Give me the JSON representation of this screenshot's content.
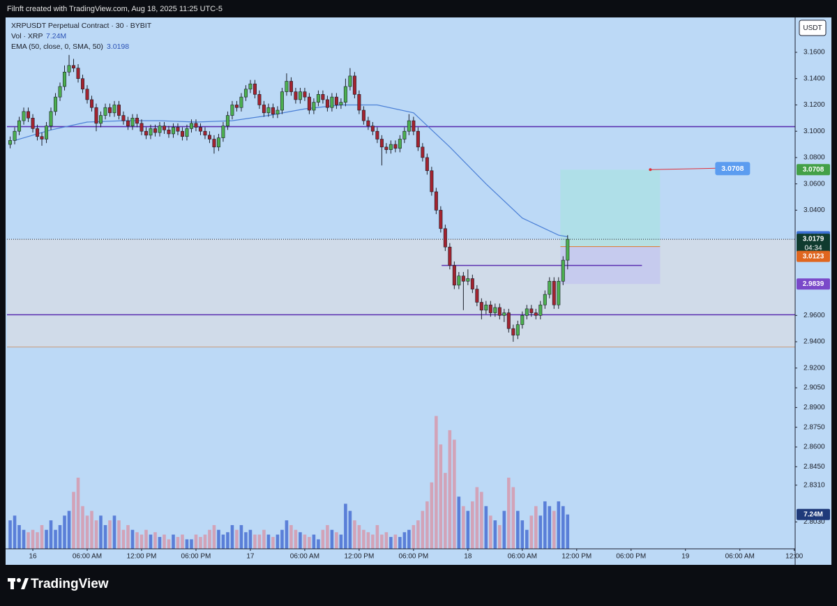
{
  "header": {
    "caption": "Filnft created with TradingView.com, Aug 18, 2025 11:25 UTC-5"
  },
  "chart_data": {
    "type": "candlestick",
    "legend": {
      "symbol": "XRPUSDT Perpetual Contract · 30 · BYBIT",
      "volume": "Vol · XRP",
      "ema": "EMA (50, close, 0, SMA, 50)"
    },
    "currency": "USDT",
    "colors": {
      "up": "#4caf50",
      "down": "#a3232f",
      "volume_up": "#5a7fd8",
      "volume_down": "#d2a3b8",
      "ema": "#4a7fd6",
      "level": "#5a2fb0",
      "background": "#bcd9f6"
    },
    "x": [
      -2.5,
      -2,
      -1.5,
      -1,
      -0.5,
      0,
      0.5,
      1,
      1.5,
      2,
      2.5,
      3,
      3.5,
      4,
      4.5,
      5,
      5.5,
      6,
      6.5,
      7,
      7.5,
      8,
      8.5,
      9,
      9.5,
      10,
      10.5,
      11,
      11.5,
      12,
      12.5,
      13,
      13.5,
      14,
      14.5,
      15,
      15.5,
      16,
      16.5,
      17,
      17.5,
      18,
      18.5,
      19,
      19.5,
      20,
      20.5,
      21,
      21.5,
      22,
      22.5,
      23,
      23.5,
      24,
      24.5,
      25,
      25.5,
      26,
      26.5,
      27,
      27.5,
      28,
      28.5,
      29,
      29.5,
      30,
      30.5,
      31,
      31.5,
      32,
      32.5,
      33,
      33.5,
      34,
      34.5,
      35,
      35.5,
      36,
      36.5,
      37,
      37.5,
      38,
      38.5,
      39,
      39.5,
      40,
      40.5,
      41,
      41.5,
      42,
      42.5,
      43,
      43.5,
      44,
      44.5,
      45,
      45.5,
      46,
      46.5,
      47,
      47.5,
      48,
      48.5,
      49,
      49.5,
      50,
      50.5,
      51,
      51.5,
      52,
      52.5,
      53,
      53.5,
      54,
      54.5,
      55,
      55.5,
      56,
      56.5,
      57,
      57.5,
      58,
      58.5,
      59
    ],
    "open": [
      3.09,
      3.093,
      3.1,
      3.108,
      3.115,
      3.11,
      3.102,
      3.096,
      3.094,
      3.104,
      3.115,
      3.126,
      3.134,
      3.145,
      3.15,
      3.148,
      3.14,
      3.132,
      3.124,
      3.118,
      3.106,
      3.112,
      3.118,
      3.114,
      3.12,
      3.112,
      3.108,
      3.104,
      3.11,
      3.106,
      3.1,
      3.097,
      3.102,
      3.099,
      3.104,
      3.101,
      3.098,
      3.103,
      3.1,
      3.096,
      3.102,
      3.106,
      3.103,
      3.1,
      3.097,
      3.094,
      3.088,
      3.095,
      3.104,
      3.112,
      3.12,
      3.118,
      3.126,
      3.132,
      3.136,
      3.128,
      3.12,
      3.114,
      3.118,
      3.113,
      3.116,
      3.13,
      3.138,
      3.13,
      3.124,
      3.13,
      3.126,
      3.116,
      3.122,
      3.128,
      3.124,
      3.118,
      3.126,
      3.12,
      3.122,
      3.134,
      3.142,
      3.128,
      3.116,
      3.108,
      3.104,
      3.1,
      3.094,
      3.088,
      3.086,
      3.09,
      3.087,
      3.094,
      3.1,
      3.108,
      3.1,
      3.088,
      3.08,
      3.07,
      3.054,
      3.04,
      3.026,
      3.012,
      2.998,
      2.983,
      2.99,
      2.986,
      2.988,
      2.98,
      2.97,
      2.964,
      2.968,
      2.962,
      2.966,
      2.96,
      2.962,
      2.95,
      2.945,
      2.953,
      2.96,
      2.965,
      2.962,
      2.96,
      2.968,
      2.976,
      2.986,
      2.968,
      2.986,
      3.002
    ],
    "high": [
      3.096,
      3.103,
      3.111,
      3.118,
      3.118,
      3.113,
      3.105,
      3.099,
      3.107,
      3.118,
      3.129,
      3.137,
      3.15,
      3.158,
      3.155,
      3.151,
      3.143,
      3.135,
      3.127,
      3.121,
      3.115,
      3.121,
      3.121,
      3.123,
      3.123,
      3.115,
      3.111,
      3.113,
      3.113,
      3.109,
      3.103,
      3.105,
      3.105,
      3.107,
      3.107,
      3.104,
      3.106,
      3.106,
      3.103,
      3.105,
      3.109,
      3.109,
      3.106,
      3.103,
      3.1,
      3.097,
      3.098,
      3.107,
      3.115,
      3.123,
      3.123,
      3.129,
      3.135,
      3.139,
      3.139,
      3.131,
      3.123,
      3.121,
      3.121,
      3.119,
      3.133,
      3.144,
      3.141,
      3.133,
      3.133,
      3.133,
      3.129,
      3.125,
      3.131,
      3.131,
      3.127,
      3.129,
      3.129,
      3.125,
      3.14,
      3.148,
      3.145,
      3.131,
      3.119,
      3.111,
      3.107,
      3.103,
      3.097,
      3.091,
      3.093,
      3.093,
      3.097,
      3.103,
      3.113,
      3.111,
      3.103,
      3.091,
      3.083,
      3.073,
      3.057,
      3.043,
      3.029,
      3.015,
      3.001,
      2.993,
      2.993,
      2.995,
      2.991,
      2.983,
      2.973,
      2.971,
      2.971,
      2.969,
      2.969,
      2.965,
      2.965,
      2.953,
      2.956,
      2.963,
      2.968,
      2.968,
      2.965,
      2.971,
      2.979,
      2.989,
      2.989,
      2.989,
      3.005,
      3.021
    ],
    "low": [
      3.087,
      3.09,
      3.097,
      3.105,
      3.107,
      3.099,
      3.093,
      3.089,
      3.091,
      3.101,
      3.112,
      3.123,
      3.131,
      3.142,
      3.145,
      3.137,
      3.129,
      3.121,
      3.115,
      3.1,
      3.103,
      3.109,
      3.111,
      3.111,
      3.109,
      3.105,
      3.101,
      3.101,
      3.103,
      3.097,
      3.094,
      3.094,
      3.096,
      3.096,
      3.098,
      3.095,
      3.095,
      3.097,
      3.093,
      3.093,
      3.099,
      3.1,
      3.097,
      3.094,
      3.091,
      3.083,
      3.085,
      3.092,
      3.101,
      3.109,
      3.115,
      3.115,
      3.123,
      3.129,
      3.125,
      3.117,
      3.111,
      3.111,
      3.11,
      3.11,
      3.113,
      3.127,
      3.127,
      3.121,
      3.121,
      3.123,
      3.113,
      3.113,
      3.119,
      3.121,
      3.115,
      3.115,
      3.117,
      3.117,
      3.119,
      3.131,
      3.125,
      3.113,
      3.105,
      3.101,
      3.097,
      3.091,
      3.074,
      3.083,
      3.083,
      3.084,
      3.084,
      3.091,
      3.097,
      3.097,
      3.085,
      3.077,
      3.067,
      3.051,
      3.037,
      3.023,
      3.009,
      2.995,
      2.98,
      2.98,
      2.964,
      2.983,
      2.977,
      2.967,
      2.957,
      2.961,
      2.959,
      2.959,
      2.957,
      2.955,
      2.947,
      2.94,
      2.942,
      2.95,
      2.957,
      2.959,
      2.957,
      2.957,
      2.965,
      2.973,
      2.965,
      2.965,
      2.983,
      2.995
    ],
    "close": [
      3.093,
      3.1,
      3.108,
      3.115,
      3.11,
      3.102,
      3.096,
      3.094,
      3.104,
      3.115,
      3.126,
      3.134,
      3.145,
      3.15,
      3.148,
      3.14,
      3.132,
      3.124,
      3.118,
      3.106,
      3.112,
      3.118,
      3.114,
      3.12,
      3.112,
      3.108,
      3.104,
      3.11,
      3.106,
      3.1,
      3.097,
      3.102,
      3.099,
      3.104,
      3.101,
      3.098,
      3.103,
      3.1,
      3.096,
      3.102,
      3.106,
      3.103,
      3.1,
      3.097,
      3.094,
      3.088,
      3.095,
      3.104,
      3.112,
      3.12,
      3.118,
      3.126,
      3.132,
      3.136,
      3.128,
      3.12,
      3.114,
      3.118,
      3.113,
      3.116,
      3.13,
      3.138,
      3.13,
      3.124,
      3.13,
      3.126,
      3.116,
      3.122,
      3.128,
      3.124,
      3.118,
      3.126,
      3.12,
      3.122,
      3.134,
      3.142,
      3.128,
      3.116,
      3.108,
      3.104,
      3.1,
      3.094,
      3.088,
      3.086,
      3.09,
      3.087,
      3.094,
      3.1,
      3.108,
      3.1,
      3.088,
      3.08,
      3.07,
      3.054,
      3.04,
      3.026,
      3.012,
      2.998,
      2.983,
      2.99,
      2.986,
      2.988,
      2.98,
      2.97,
      2.964,
      2.968,
      2.962,
      2.966,
      2.96,
      2.962,
      2.95,
      2.945,
      2.953,
      2.96,
      2.965,
      2.962,
      2.96,
      2.968,
      2.976,
      2.986,
      2.968,
      2.986,
      3.002,
      3.0179
    ],
    "volume": [
      6,
      7,
      5,
      4,
      3.5,
      4,
      3.5,
      5,
      4,
      6,
      4,
      5,
      7,
      8,
      12,
      15,
      9,
      7,
      8,
      6,
      7,
      5,
      6,
      7,
      6,
      4,
      5,
      4,
      3.5,
      3,
      4,
      3,
      3.5,
      2.5,
      3,
      2,
      3,
      2.5,
      3,
      2,
      2,
      3,
      2.5,
      3,
      4,
      5,
      4,
      3,
      3.5,
      5,
      4,
      5,
      3.5,
      4,
      3,
      3,
      4,
      3,
      2.5,
      3,
      4,
      6,
      5,
      4,
      3.5,
      3,
      2.5,
      3,
      2,
      4,
      5,
      4,
      3.5,
      3,
      9.5,
      8,
      6,
      5,
      4,
      3.5,
      3,
      5,
      3,
      3.5,
      2.5,
      3,
      2.5,
      3.5,
      4,
      5,
      6,
      8,
      10,
      14,
      28,
      22,
      16,
      25,
      23,
      11,
      9,
      8,
      10,
      13,
      12,
      9,
      7,
      6,
      5,
      8,
      15,
      13,
      8,
      6,
      4,
      7,
      9,
      7,
      10,
      9,
      8,
      10,
      9,
      7.24
    ],
    "volume_label": "7.24M",
    "ema": {
      "x": [
        -2,
        2,
        6,
        10,
        14,
        18,
        22,
        26,
        30,
        34,
        38,
        42,
        46,
        50,
        54,
        58,
        59
      ],
      "values": [
        3.093,
        3.101,
        3.107,
        3.108,
        3.108,
        3.107,
        3.108,
        3.112,
        3.117,
        3.12,
        3.12,
        3.114,
        3.088,
        3.06,
        3.034,
        3.021,
        3.0198
      ]
    },
    "levels": [
      3.1035,
      2.9605
    ],
    "zone": [
      2.936,
      3.018
    ],
    "short_level": {
      "value": 2.998,
      "x": [
        45.1,
        67.2
      ]
    },
    "position": {
      "entry": 3.0123,
      "target": 3.0708,
      "stop": 2.9839,
      "x": [
        58.2,
        69.2
      ]
    },
    "countdown": "04:34",
    "xlim": [
      -2.85,
      84.1
    ],
    "ylim": [
      2.7826,
      3.1865
    ],
    "y2lim": [
      0,
      112
    ],
    "xticks": [
      {
        "value": 0,
        "label": "16"
      },
      {
        "value": 6,
        "label": "06:00 AM"
      },
      {
        "value": 12,
        "label": "12:00 PM"
      },
      {
        "value": 18,
        "label": "06:00 PM"
      },
      {
        "value": 24,
        "label": "17"
      },
      {
        "value": 30,
        "label": "06:00 AM"
      },
      {
        "value": 36,
        "label": "12:00 PM"
      },
      {
        "value": 42,
        "label": "06:00 PM"
      },
      {
        "value": 48,
        "label": "18"
      },
      {
        "value": 54,
        "label": "06:00 AM"
      },
      {
        "value": 60,
        "label": "12:00 PM"
      },
      {
        "value": 66,
        "label": "06:00 PM"
      },
      {
        "value": 72,
        "label": "19"
      },
      {
        "value": 78,
        "label": "06:00 AM"
      },
      {
        "value": 84,
        "label": "12:00"
      }
    ],
    "yticks": [
      {
        "value": 3.16,
        "label": "3.1600"
      },
      {
        "value": 3.14,
        "label": "3.1400"
      },
      {
        "value": 3.12,
        "label": "3.1200"
      },
      {
        "value": 3.1,
        "label": "3.1000"
      },
      {
        "value": 3.08,
        "label": "3.0800"
      },
      {
        "value": 3.06,
        "label": "3.0600"
      },
      {
        "value": 3.04,
        "label": "3.0400"
      },
      {
        "value": 2.96,
        "label": "2.9600"
      },
      {
        "value": 2.94,
        "label": "2.9400"
      },
      {
        "value": 2.92,
        "label": "2.9200"
      },
      {
        "value": 2.905,
        "label": "2.9050"
      },
      {
        "value": 2.89,
        "label": "2.8900"
      },
      {
        "value": 2.875,
        "label": "2.8750"
      },
      {
        "value": 2.86,
        "label": "2.8600"
      },
      {
        "value": 2.845,
        "label": "2.8450"
      },
      {
        "value": 2.831,
        "label": "2.8310"
      },
      {
        "value": 2.803,
        "label": "2.8030"
      }
    ]
  },
  "footer": {
    "brand": "TradingView"
  }
}
